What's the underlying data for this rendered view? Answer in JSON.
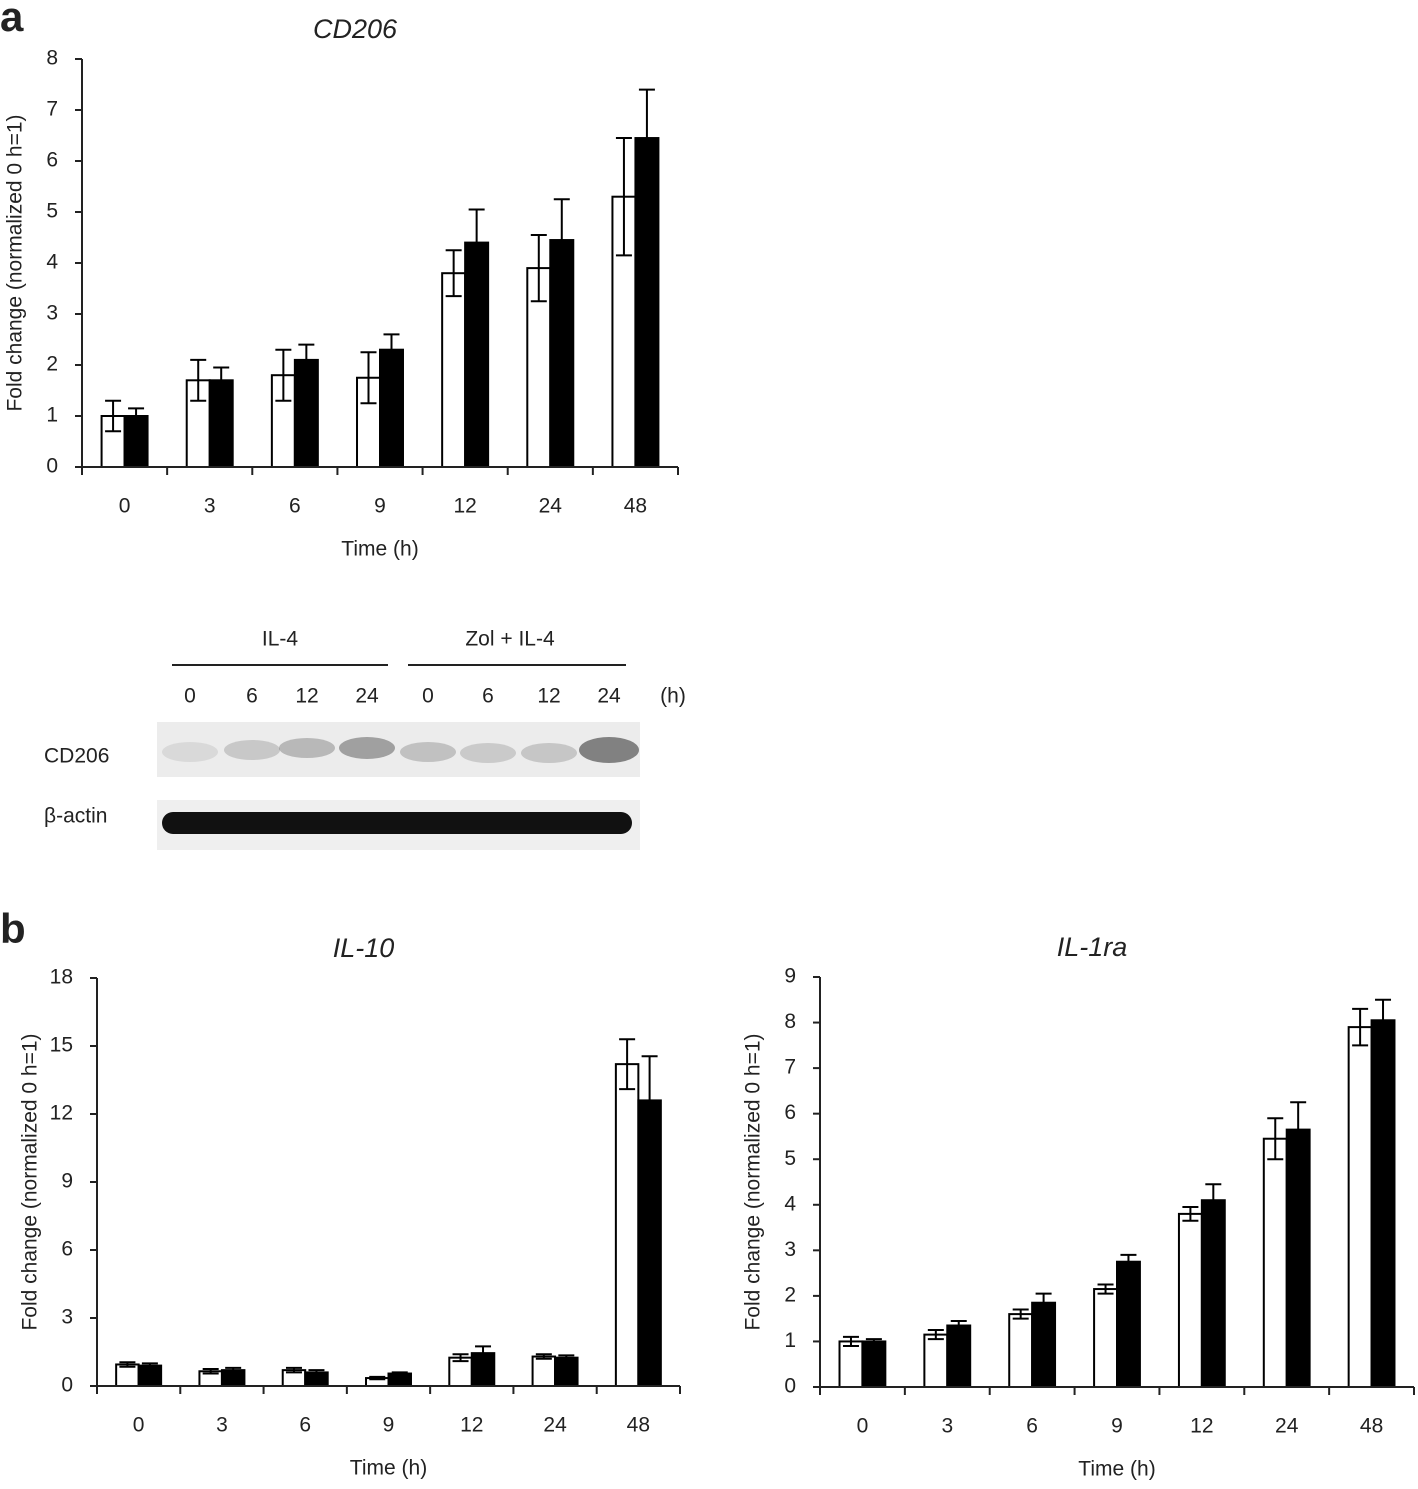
{
  "panels": [
    "a",
    "b"
  ],
  "blot": {
    "groups": [
      "IL-4",
      "Zol + IL-4"
    ],
    "lanes": [
      "0",
      "6",
      "12",
      "24",
      "0",
      "6",
      "12",
      "24"
    ],
    "unit": "(h)",
    "rows": [
      "CD206",
      "β-actin"
    ]
  },
  "chart_data": [
    {
      "type": "bar",
      "title": "CD206",
      "y_label": "Fold change (normalized 0 h=1)",
      "x_label": "Time (h)",
      "categories": [
        "0",
        "3",
        "6",
        "9",
        "12",
        "24",
        "48"
      ],
      "series": [
        {
          "color": "#ffffff",
          "values": [
            1.0,
            1.7,
            1.8,
            1.75,
            3.8,
            3.9,
            5.3
          ],
          "errors": [
            0.3,
            0.4,
            0.5,
            0.5,
            0.45,
            0.65,
            1.15
          ]
        },
        {
          "color": "#000000",
          "values": [
            1.0,
            1.7,
            2.1,
            2.3,
            4.4,
            4.45,
            6.45
          ],
          "errors": [
            0.15,
            0.25,
            0.3,
            0.3,
            0.65,
            0.8,
            0.95
          ]
        }
      ],
      "ylim": [
        0,
        8
      ],
      "yticks": [
        0,
        1,
        2,
        3,
        4,
        5,
        6,
        7,
        8
      ]
    },
    {
      "type": "bar",
      "title": "IL-10",
      "y_label": "Fold change (normalized 0 h=1)",
      "x_label": "Time (h)",
      "categories": [
        "0",
        "3",
        "6",
        "9",
        "12",
        "24",
        "48"
      ],
      "series": [
        {
          "color": "#ffffff",
          "values": [
            0.95,
            0.65,
            0.7,
            0.35,
            1.25,
            1.3,
            14.2
          ],
          "errors": [
            0.1,
            0.1,
            0.1,
            0.05,
            0.15,
            0.1,
            1.1
          ]
        },
        {
          "color": "#000000",
          "values": [
            0.9,
            0.7,
            0.6,
            0.55,
            1.45,
            1.25,
            12.6
          ],
          "errors": [
            0.1,
            0.1,
            0.1,
            0.05,
            0.3,
            0.1,
            1.95
          ]
        }
      ],
      "ylim": [
        0,
        18
      ],
      "yticks": [
        0,
        3,
        6,
        9,
        12,
        15,
        18
      ]
    },
    {
      "type": "bar",
      "title": "IL-1ra",
      "y_label": "Fold change (normalized 0 h=1)",
      "x_label": "Time (h)",
      "categories": [
        "0",
        "3",
        "6",
        "9",
        "12",
        "24",
        "48"
      ],
      "series": [
        {
          "color": "#ffffff",
          "values": [
            1.0,
            1.15,
            1.6,
            2.15,
            3.8,
            5.45,
            7.9
          ],
          "errors": [
            0.1,
            0.1,
            0.1,
            0.1,
            0.15,
            0.45,
            0.4
          ]
        },
        {
          "color": "#000000",
          "values": [
            1.0,
            1.35,
            1.85,
            2.75,
            4.1,
            5.65,
            8.05
          ],
          "errors": [
            0.05,
            0.1,
            0.2,
            0.15,
            0.35,
            0.6,
            0.45
          ]
        }
      ],
      "ylim": [
        0,
        9
      ],
      "yticks": [
        0,
        1,
        2,
        3,
        4,
        5,
        6,
        7,
        8,
        9
      ]
    }
  ]
}
